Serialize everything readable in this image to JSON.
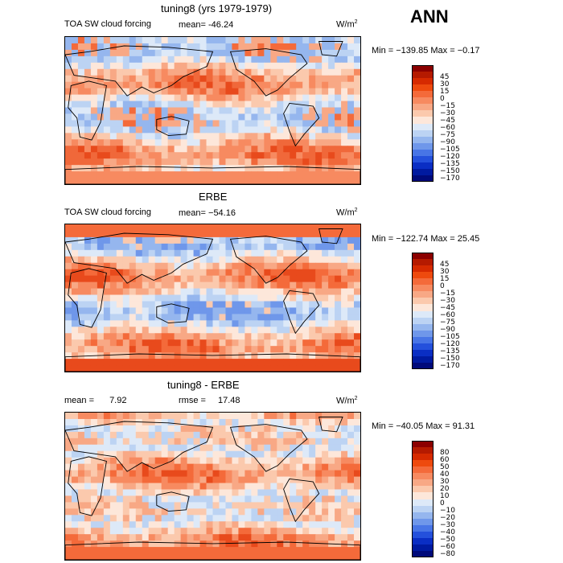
{
  "header": {
    "season": "ANN"
  },
  "panels": [
    {
      "title": "tuning8 (yrs 1979-1979)",
      "left_label": "TOA SW cloud forcing",
      "mean_label": "mean=",
      "mean_value": "-46.24",
      "units": "W/m",
      "units_exp": "2",
      "minmax": "Min = −139.85  Max =   −0.17"
    },
    {
      "title": "ERBE",
      "left_label": "TOA SW cloud forcing",
      "mean_label": "mean=",
      "mean_value": "−54.16",
      "units": "W/m",
      "units_exp": "2",
      "minmax": "Min = −122.74  Max =   25.45"
    },
    {
      "title": "tuning8 - ERBE",
      "left_label": "mean =",
      "left_value": "7.92",
      "rmse_label": "rmse =",
      "rmse_value": "17.48",
      "units": "W/m",
      "units_exp": "2",
      "minmax": "Min = −40.05  Max =   91.31"
    }
  ],
  "colorbars": [
    {
      "labels": [
        "45",
        "30",
        "15",
        "0",
        "−15",
        "−30",
        "−45",
        "−60",
        "−75",
        "−90",
        "−105",
        "−120",
        "−135",
        "−150",
        "−170"
      ],
      "colors": [
        "#8b0000",
        "#b51a00",
        "#d62a00",
        "#ee4a0e",
        "#f46a3a",
        "#f78a60",
        "#f8a885",
        "#fbc9ad",
        "#fde7da",
        "#dde9f8",
        "#bcd3f3",
        "#95b6ee",
        "#6f97ea",
        "#4875e6",
        "#2450dc",
        "#0a2ec4",
        "#001aa0",
        "#000a7a"
      ]
    },
    {
      "labels": [
        "45",
        "30",
        "15",
        "0",
        "−15",
        "−30",
        "−45",
        "−60",
        "−75",
        "−90",
        "−105",
        "−120",
        "−135",
        "−150",
        "−170"
      ],
      "colors": [
        "#8b0000",
        "#b51a00",
        "#d62a00",
        "#ee4a0e",
        "#f46a3a",
        "#f78a60",
        "#f8a885",
        "#fbc9ad",
        "#fde7da",
        "#dde9f8",
        "#bcd3f3",
        "#95b6ee",
        "#6f97ea",
        "#4875e6",
        "#2450dc",
        "#0a2ec4",
        "#001aa0",
        "#000a7a"
      ]
    },
    {
      "labels": [
        "80",
        "60",
        "50",
        "40",
        "30",
        "20",
        "10",
        "0",
        "−10",
        "−20",
        "−30",
        "−40",
        "−50",
        "−60",
        "−80"
      ],
      "colors": [
        "#8b0000",
        "#b51a00",
        "#d62a00",
        "#ee4a0e",
        "#f46a3a",
        "#f78a60",
        "#f8a885",
        "#fbc9ad",
        "#fde7da",
        "#dde9f8",
        "#bcd3f3",
        "#95b6ee",
        "#6f97ea",
        "#4875e6",
        "#2450dc",
        "#0a2ec4",
        "#001aa0",
        "#000a7a"
      ]
    }
  ],
  "chart_data": [
    {
      "type": "heatmap",
      "title": "tuning8 (yrs 1979-1979)",
      "variable": "TOA SW cloud forcing",
      "units": "W/m2",
      "mean": -46.24,
      "min": -139.85,
      "max": -0.17,
      "contour_levels": [
        45,
        30,
        15,
        0,
        -15,
        -30,
        -45,
        -60,
        -75,
        -90,
        -105,
        -120,
        -135,
        -150,
        -170
      ]
    },
    {
      "type": "heatmap",
      "title": "ERBE",
      "variable": "TOA SW cloud forcing",
      "units": "W/m2",
      "mean": -54.16,
      "min": -122.74,
      "max": 25.45,
      "contour_levels": [
        45,
        30,
        15,
        0,
        -15,
        -30,
        -45,
        -60,
        -75,
        -90,
        -105,
        -120,
        -135,
        -150,
        -170
      ]
    },
    {
      "type": "heatmap",
      "title": "tuning8 - ERBE",
      "units": "W/m2",
      "mean": 7.92,
      "rmse": 17.48,
      "min": -40.05,
      "max": 91.31,
      "contour_levels": [
        80,
        60,
        50,
        40,
        30,
        20,
        10,
        0,
        -10,
        -20,
        -30,
        -40,
        -50,
        -60,
        -80
      ]
    }
  ]
}
